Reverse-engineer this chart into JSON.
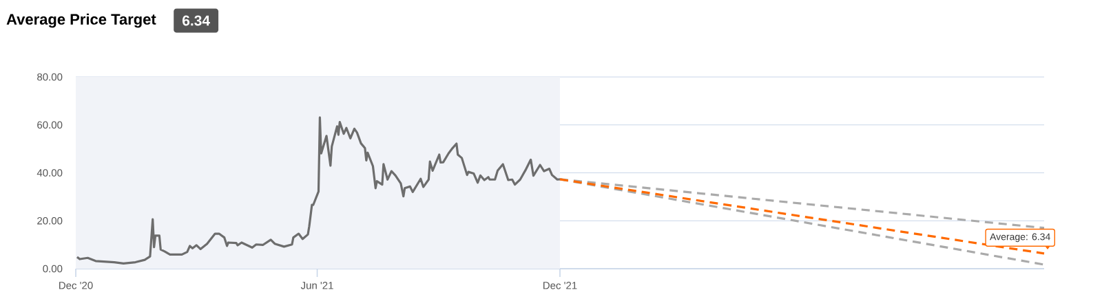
{
  "chart_data": {
    "type": "line",
    "title": "Average Price Target",
    "subtitle": "6.34",
    "xlim": [
      "2020-12-01",
      "2022-12-01"
    ],
    "xticks": [
      {
        "value": "2020-12-01",
        "label": "Dec '20"
      },
      {
        "value": "2021-06-01",
        "label": "Jun '21"
      },
      {
        "value": "2021-12-01",
        "label": "Dec '21"
      }
    ],
    "ylim": [
      0,
      80
    ],
    "yticks": [
      {
        "value": 0,
        "label": "0.00"
      },
      {
        "value": 20,
        "label": "20.00"
      },
      {
        "value": 40,
        "label": "40.00"
      },
      {
        "value": 60,
        "label": "60.00"
      },
      {
        "value": 80,
        "label": "80.00"
      }
    ],
    "grid": "y",
    "bands": [
      {
        "axis": "x",
        "from": "2020-12-01",
        "to": "2021-12-01",
        "color": "#f1f3f8"
      }
    ],
    "annotations": [
      {
        "text": "Average: 6.34",
        "x": "2022-12-01",
        "y": 6.34
      }
    ],
    "series": [
      {
        "color": "#6d6d6d",
        "line_style": "solid",
        "x": [
          "2020-12-02",
          "2020-12-04",
          "2020-12-10",
          "2020-12-16",
          "2020-12-30",
          "2021-01-06",
          "2021-01-15",
          "2021-01-22",
          "2021-01-26",
          "2021-01-28",
          "2021-01-29",
          "2021-01-30",
          "2021-02-02",
          "2021-02-03",
          "2021-02-06",
          "2021-02-10",
          "2021-02-19",
          "2021-02-23",
          "2021-02-25",
          "2021-02-27",
          "2021-03-02",
          "2021-03-05",
          "2021-03-10",
          "2021-03-16",
          "2021-03-19",
          "2021-03-23",
          "2021-03-25",
          "2021-03-26",
          "2021-04-01",
          "2021-04-02",
          "2021-04-05",
          "2021-04-13",
          "2021-04-16",
          "2021-04-21",
          "2021-04-27",
          "2021-04-30",
          "2021-05-07",
          "2021-05-13",
          "2021-05-14",
          "2021-05-18",
          "2021-05-21",
          "2021-05-25",
          "2021-05-26",
          "2021-05-28",
          "2021-05-29",
          "2021-06-02",
          "2021-06-03",
          "2021-06-04",
          "2021-06-08",
          "2021-06-11",
          "2021-06-12",
          "2021-06-16",
          "2021-06-17",
          "2021-06-18",
          "2021-06-21",
          "2021-06-23",
          "2021-06-26",
          "2021-06-29",
          "2021-07-01",
          "2021-07-04",
          "2021-07-07",
          "2021-07-08",
          "2021-07-09",
          "2021-07-13",
          "2021-07-15",
          "2021-07-16",
          "2021-07-20",
          "2021-07-21",
          "2021-07-24",
          "2021-07-27",
          "2021-07-30",
          "2021-08-03",
          "2021-08-05",
          "2021-08-06",
          "2021-08-10",
          "2021-08-12",
          "2021-08-18",
          "2021-08-20",
          "2021-08-24",
          "2021-08-25",
          "2021-08-27",
          "2021-09-01",
          "2021-09-02",
          "2021-09-04",
          "2021-09-08",
          "2021-09-11",
          "2021-09-14",
          "2021-09-15",
          "2021-09-18",
          "2021-09-22",
          "2021-09-23",
          "2021-09-27",
          "2021-09-30",
          "2021-10-02",
          "2021-10-05",
          "2021-10-08",
          "2021-10-09",
          "2021-10-13",
          "2021-10-15",
          "2021-10-19",
          "2021-10-23",
          "2021-10-26",
          "2021-10-28",
          "2021-11-01",
          "2021-11-05",
          "2021-11-09",
          "2021-11-11",
          "2021-11-16",
          "2021-11-19",
          "2021-11-23",
          "2021-11-25",
          "2021-11-29",
          "2021-12-01"
        ],
        "values": [
          4.9,
          4.0,
          4.5,
          3.2,
          2.7,
          2.2,
          2.7,
          3.7,
          5.1,
          20.6,
          9.0,
          13.8,
          13.8,
          8.0,
          7.2,
          5.9,
          5.9,
          7.0,
          9.5,
          8.5,
          9.8,
          8.2,
          10.4,
          14.6,
          14.6,
          13.0,
          9.5,
          10.9,
          10.7,
          9.8,
          10.9,
          8.8,
          10.1,
          9.9,
          12.1,
          10.4,
          9.2,
          10.1,
          13.0,
          14.6,
          12.4,
          14.3,
          17.7,
          26.6,
          26.6,
          32.2,
          63.1,
          48.1,
          55.4,
          43.0,
          51.0,
          59.4,
          55.9,
          61.2,
          56.3,
          58.7,
          54.4,
          58.4,
          56.8,
          52.3,
          50.3,
          45.2,
          48.4,
          42.8,
          33.6,
          36.5,
          35.1,
          43.6,
          37.2,
          40.7,
          38.9,
          35.6,
          30.2,
          33.6,
          34.3,
          32.0,
          37.5,
          34.1,
          37.2,
          44.7,
          40.9,
          47.6,
          44.3,
          44.4,
          48.1,
          50.3,
          52.2,
          47.6,
          46.2,
          39.1,
          40.4,
          39.7,
          35.9,
          38.9,
          37.0,
          38.2,
          37.2,
          37.2,
          40.9,
          43.6,
          37.0,
          37.2,
          35.1,
          37.2,
          41.1,
          45.5,
          38.8,
          43.3,
          40.7,
          41.7,
          39.1,
          37.2,
          37.3
        ]
      },
      {
        "color": "#aaaaaa",
        "line_style": "dashed",
        "x": [
          "2021-12-01",
          "2022-12-01"
        ],
        "values": [
          37.3,
          17.0
        ]
      },
      {
        "color": "#aaaaaa",
        "line_style": "dashed",
        "x": [
          "2021-12-01",
          "2022-12-01"
        ],
        "values": [
          37.3,
          1.7
        ]
      },
      {
        "color": "#ff6a00",
        "line_style": "dashed",
        "x": [
          "2021-12-01",
          "2022-12-01"
        ],
        "values": [
          37.3,
          6.34
        ]
      }
    ]
  }
}
